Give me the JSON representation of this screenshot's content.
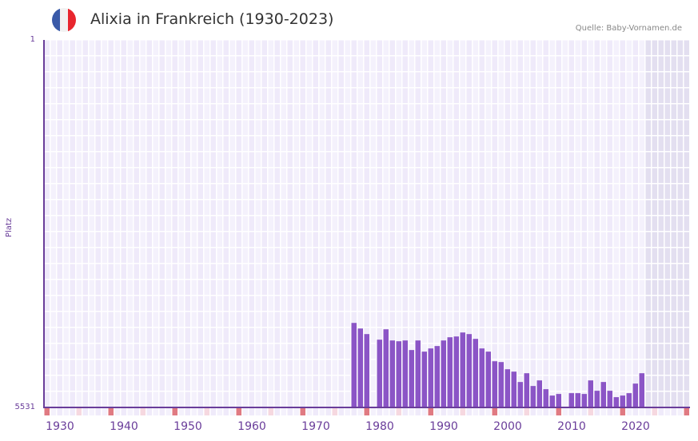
{
  "header": {
    "title": "Alixia in Frankreich (1930-2023)",
    "source": "Quelle: Baby-Vornamen.de",
    "flag_colors": [
      "#3a5aa8",
      "#f2f2f2",
      "#e8262e"
    ]
  },
  "axes": {
    "ylabel": "Platz",
    "ytick_top": "1",
    "ytick_bottom": "5531"
  },
  "colors": {
    "bar": "#8b55c6",
    "axis": "#6a3d9a",
    "grid_cell_a": "#efeafa",
    "grid_cell_b": "#f4f1fc",
    "future_cell": "#e3dff0",
    "decade_marker": "#e07a82",
    "half_decade_marker": "#f6d8e0"
  },
  "chart_data": {
    "type": "bar",
    "title": "Alixia in Frankreich (1930-2023)",
    "xlabel": "",
    "ylabel": "Platz",
    "y_inverted": true,
    "ylim": [
      5531,
      1
    ],
    "x_range": [
      1928,
      2028
    ],
    "xticks": [
      "1930",
      "1940",
      "1950",
      "1960",
      "1970",
      "1980",
      "1990",
      "2000",
      "2010",
      "2020"
    ],
    "grid": true,
    "legend": null,
    "categories": [
      1976,
      1977,
      1978,
      1980,
      1981,
      1982,
      1983,
      1984,
      1985,
      1986,
      1987,
      1988,
      1989,
      1990,
      1991,
      1992,
      1993,
      1994,
      1995,
      1996,
      1997,
      1998,
      1999,
      2000,
      2001,
      2002,
      2003,
      2004,
      2005,
      2006,
      2007,
      2008,
      2010,
      2011,
      2012,
      2013,
      2014,
      2015,
      2016,
      2017,
      2018,
      2019,
      2020,
      2021
    ],
    "values": [
      4259,
      4343,
      4427,
      4511,
      4355,
      4523,
      4535,
      4523,
      4667,
      4523,
      4691,
      4643,
      4607,
      4523,
      4475,
      4463,
      4403,
      4427,
      4499,
      4643,
      4691,
      4836,
      4848,
      4956,
      4992,
      5148,
      5016,
      5208,
      5124,
      5256,
      5352,
      5328,
      5316,
      5316,
      5328,
      5124,
      5280,
      5148,
      5280,
      5376,
      5352,
      5316,
      5172,
      5016
    ]
  }
}
